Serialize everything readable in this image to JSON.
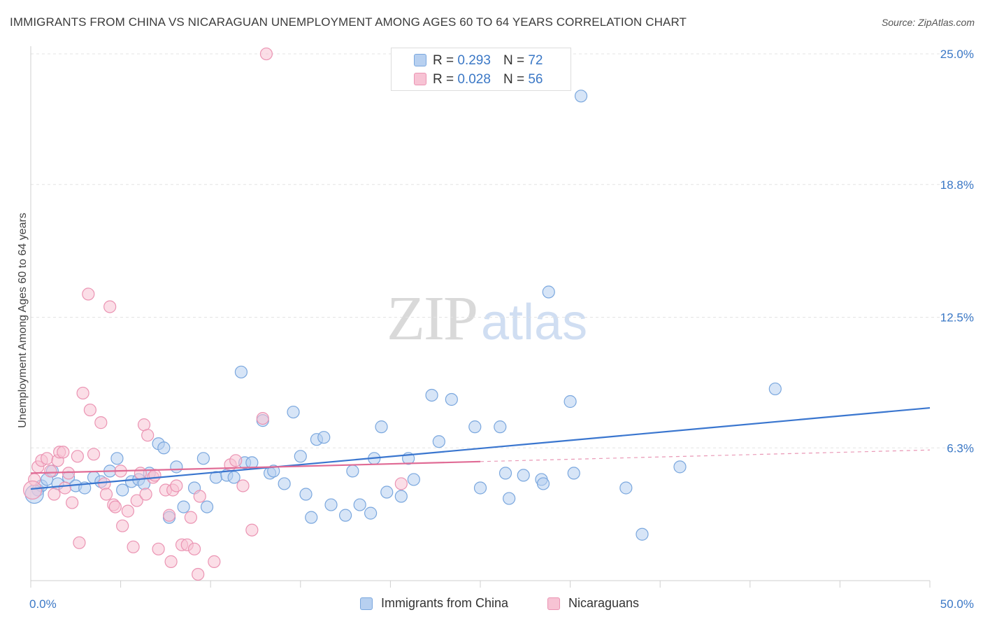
{
  "header": {
    "title": "IMMIGRANTS FROM CHINA VS NICARAGUAN UNEMPLOYMENT AMONG AGES 60 TO 64 YEARS CORRELATION CHART",
    "source": "Source: ZipAtlas.com"
  },
  "watermark": {
    "zip": "ZIP",
    "atlas": "atlas"
  },
  "legend": {
    "series1": {
      "r_label": "R =",
      "r_value": "0.293",
      "n_label": "N =",
      "n_value": "72"
    },
    "series2": {
      "r_label": "R =",
      "r_value": "0.028",
      "n_label": "N =",
      "n_value": "56"
    }
  },
  "colors": {
    "blue_fill": "#b7d0f0",
    "blue_stroke": "#7aa7de",
    "blue_line": "#3a76cf",
    "pink_fill": "#f7c3d4",
    "pink_stroke": "#eb94b3",
    "pink_line": "#e06b95",
    "axis_text": "#3b78c6",
    "grid": "#e3e3e3"
  },
  "chart_data": {
    "type": "scatter",
    "title": "IMMIGRANTS FROM CHINA VS NICARAGUAN UNEMPLOYMENT AMONG AGES 60 TO 64 YEARS CORRELATION CHART",
    "xlabel": "",
    "ylabel": "Unemployment Among Ages 60 to 64 years",
    "xlim": [
      0,
      50
    ],
    "ylim": [
      0,
      25.5
    ],
    "x_tick_labels": [
      "0.0%",
      "50.0%"
    ],
    "y_ticks": [
      6.3,
      12.5,
      18.8,
      25.0
    ],
    "y_tick_labels": [
      "6.3%",
      "12.5%",
      "18.8%",
      "25.0%"
    ],
    "grid": true,
    "legend_position": "top-center",
    "series": [
      {
        "name": "Immigrants from China",
        "r": 0.293,
        "n": 72,
        "trend": {
          "x": [
            0,
            50
          ],
          "y": [
            4.35,
            8.2
          ],
          "dashed_from": null
        },
        "points": [
          [
            0.4,
            4.3
          ],
          [
            0.6,
            4.5
          ],
          [
            0.9,
            4.8
          ],
          [
            1.2,
            5.2
          ],
          [
            1.5,
            4.6
          ],
          [
            2.1,
            4.9
          ],
          [
            2.5,
            4.5
          ],
          [
            3.0,
            4.4
          ],
          [
            3.5,
            4.9
          ],
          [
            3.9,
            4.7
          ],
          [
            4.4,
            5.2
          ],
          [
            4.8,
            5.8
          ],
          [
            5.1,
            4.3
          ],
          [
            5.6,
            4.7
          ],
          [
            6.0,
            4.8
          ],
          [
            6.3,
            4.6
          ],
          [
            6.6,
            5.1
          ],
          [
            7.1,
            6.5
          ],
          [
            7.4,
            6.3
          ],
          [
            7.7,
            3.0
          ],
          [
            8.1,
            5.4
          ],
          [
            8.5,
            3.5
          ],
          [
            9.1,
            4.4
          ],
          [
            9.6,
            5.8
          ],
          [
            9.8,
            3.5
          ],
          [
            10.3,
            4.9
          ],
          [
            10.9,
            5.0
          ],
          [
            11.3,
            4.9
          ],
          [
            11.9,
            5.6
          ],
          [
            11.7,
            9.9
          ],
          [
            12.3,
            5.6
          ],
          [
            12.9,
            7.6
          ],
          [
            13.3,
            5.1
          ],
          [
            13.5,
            5.2
          ],
          [
            14.1,
            4.6
          ],
          [
            14.6,
            8.0
          ],
          [
            15.0,
            5.9
          ],
          [
            15.3,
            4.1
          ],
          [
            15.6,
            3.0
          ],
          [
            15.9,
            6.7
          ],
          [
            16.3,
            6.8
          ],
          [
            16.7,
            3.6
          ],
          [
            17.5,
            3.1
          ],
          [
            17.9,
            5.2
          ],
          [
            18.3,
            3.6
          ],
          [
            18.9,
            3.2
          ],
          [
            19.1,
            5.8
          ],
          [
            19.5,
            7.3
          ],
          [
            19.8,
            4.2
          ],
          [
            20.6,
            4.0
          ],
          [
            21.0,
            5.8
          ],
          [
            21.3,
            4.8
          ],
          [
            22.3,
            8.8
          ],
          [
            22.7,
            6.6
          ],
          [
            23.4,
            8.6
          ],
          [
            24.7,
            7.3
          ],
          [
            25.0,
            4.4
          ],
          [
            26.1,
            7.3
          ],
          [
            26.4,
            5.1
          ],
          [
            26.6,
            3.9
          ],
          [
            27.4,
            5.0
          ],
          [
            28.4,
            4.8
          ],
          [
            28.5,
            4.6
          ],
          [
            28.8,
            13.7
          ],
          [
            30.0,
            8.5
          ],
          [
            30.2,
            5.1
          ],
          [
            30.6,
            23.0
          ],
          [
            33.1,
            4.4
          ],
          [
            34.0,
            2.2
          ],
          [
            36.1,
            5.4
          ],
          [
            41.4,
            9.1
          ],
          [
            0.2,
            4.1
          ]
        ]
      },
      {
        "name": "Nicaraguans",
        "r": 0.028,
        "n": 56,
        "trend": {
          "x": [
            0,
            25,
            50
          ],
          "y": [
            5.1,
            5.65,
            6.2
          ],
          "dashed_from": 25
        },
        "points": [
          [
            0.2,
            4.8
          ],
          [
            0.4,
            5.4
          ],
          [
            0.6,
            5.7
          ],
          [
            0.9,
            5.8
          ],
          [
            1.1,
            5.2
          ],
          [
            1.3,
            4.1
          ],
          [
            1.5,
            5.7
          ],
          [
            1.6,
            6.1
          ],
          [
            1.8,
            6.1
          ],
          [
            1.9,
            4.4
          ],
          [
            2.1,
            5.1
          ],
          [
            2.3,
            3.7
          ],
          [
            2.6,
            5.9
          ],
          [
            2.7,
            1.8
          ],
          [
            2.9,
            8.9
          ],
          [
            3.2,
            13.6
          ],
          [
            3.3,
            8.1
          ],
          [
            3.5,
            6.0
          ],
          [
            3.9,
            7.5
          ],
          [
            4.1,
            4.6
          ],
          [
            4.2,
            4.1
          ],
          [
            4.4,
            13.0
          ],
          [
            4.6,
            3.6
          ],
          [
            4.7,
            3.5
          ],
          [
            5.0,
            5.2
          ],
          [
            5.1,
            2.6
          ],
          [
            5.4,
            3.3
          ],
          [
            5.7,
            1.6
          ],
          [
            5.9,
            3.8
          ],
          [
            6.1,
            5.1
          ],
          [
            6.3,
            7.4
          ],
          [
            6.4,
            4.1
          ],
          [
            6.5,
            6.9
          ],
          [
            6.8,
            4.9
          ],
          [
            6.9,
            5.0
          ],
          [
            7.1,
            1.5
          ],
          [
            7.5,
            4.3
          ],
          [
            7.7,
            3.1
          ],
          [
            7.8,
            0.9
          ],
          [
            7.9,
            4.3
          ],
          [
            8.1,
            4.5
          ],
          [
            8.4,
            1.7
          ],
          [
            8.7,
            1.7
          ],
          [
            8.9,
            3.0
          ],
          [
            9.1,
            1.5
          ],
          [
            9.3,
            0.3
          ],
          [
            9.4,
            4.0
          ],
          [
            10.2,
            0.9
          ],
          [
            11.1,
            5.5
          ],
          [
            11.4,
            5.7
          ],
          [
            11.8,
            4.5
          ],
          [
            12.3,
            2.4
          ],
          [
            12.9,
            7.7
          ],
          [
            13.1,
            25.0
          ],
          [
            20.6,
            4.6
          ],
          [
            0.1,
            4.3
          ]
        ]
      }
    ]
  },
  "axes": {
    "y_label": "Unemployment Among Ages 60 to 64 years",
    "x_min_label": "0.0%",
    "x_max_label": "50.0%"
  },
  "bottom_legend": {
    "series1": "Immigrants from China",
    "series2": "Nicaraguans"
  }
}
